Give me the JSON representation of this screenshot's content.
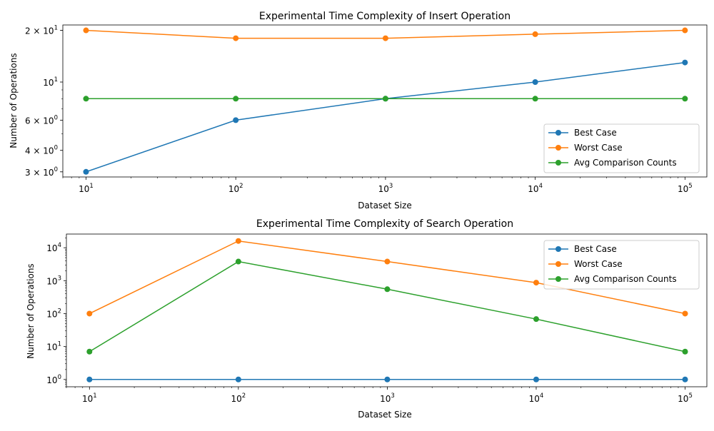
{
  "chart_data": [
    {
      "type": "line",
      "title": "Experimental Time Complexity of Insert Operation",
      "xlabel": "Dataset Size",
      "ylabel": "Number of Operations",
      "x": [
        10,
        100,
        1000,
        10000,
        100000
      ],
      "x_scale": "log",
      "y_scale": "log",
      "xlim": [
        7,
        140000
      ],
      "ylim": [
        2.8,
        21.5
      ],
      "x_tick_labels": [
        {
          "v": 10,
          "base": "10",
          "exp": "1"
        },
        {
          "v": 100,
          "base": "10",
          "exp": "2"
        },
        {
          "v": 1000,
          "base": "10",
          "exp": "3"
        },
        {
          "v": 10000,
          "base": "10",
          "exp": "4"
        },
        {
          "v": 100000,
          "base": "10",
          "exp": "5"
        }
      ],
      "y_tick_labels": [
        {
          "v": 3,
          "prefix": "3 × ",
          "base": "10",
          "exp": "0"
        },
        {
          "v": 4,
          "prefix": "4 × ",
          "base": "10",
          "exp": "0"
        },
        {
          "v": 6,
          "prefix": "6 × ",
          "base": "10",
          "exp": "0"
        },
        {
          "v": 10,
          "prefix": "",
          "base": "10",
          "exp": "1"
        },
        {
          "v": 20,
          "prefix": "2 × ",
          "base": "10",
          "exp": "1"
        }
      ],
      "series": [
        {
          "name": "Best Case",
          "color": "#1f77b4",
          "values": [
            3,
            6,
            8,
            10,
            13
          ]
        },
        {
          "name": "Worst Case",
          "color": "#ff7f0e",
          "values": [
            20,
            18,
            18,
            19,
            20
          ]
        },
        {
          "name": "Avg Comparison Counts",
          "color": "#2ca02c",
          "values": [
            8,
            8,
            8,
            8,
            8
          ]
        }
      ],
      "legend": "lower right",
      "grid": false
    },
    {
      "type": "line",
      "title": "Experimental Time Complexity of Search Operation",
      "xlabel": "Dataset Size",
      "ylabel": "Number of Operations",
      "x": [
        10,
        100,
        1000,
        10000,
        100000
      ],
      "x_scale": "log",
      "y_scale": "log",
      "xlim": [
        7,
        140000
      ],
      "ylim": [
        0.6,
        26000
      ],
      "x_tick_labels": [
        {
          "v": 10,
          "base": "10",
          "exp": "1"
        },
        {
          "v": 100,
          "base": "10",
          "exp": "2"
        },
        {
          "v": 1000,
          "base": "10",
          "exp": "3"
        },
        {
          "v": 10000,
          "base": "10",
          "exp": "4"
        },
        {
          "v": 100000,
          "base": "10",
          "exp": "5"
        }
      ],
      "y_tick_labels": [
        {
          "v": 1,
          "prefix": "",
          "base": "10",
          "exp": "0"
        },
        {
          "v": 10,
          "prefix": "",
          "base": "10",
          "exp": "1"
        },
        {
          "v": 100,
          "prefix": "",
          "base": "10",
          "exp": "2"
        },
        {
          "v": 1000,
          "prefix": "",
          "base": "10",
          "exp": "3"
        },
        {
          "v": 10000,
          "prefix": "",
          "base": "10",
          "exp": "4"
        }
      ],
      "series": [
        {
          "name": "Best Case",
          "color": "#1f77b4",
          "values": [
            1,
            1,
            1,
            1,
            1
          ]
        },
        {
          "name": "Worst Case",
          "color": "#ff7f0e",
          "values": [
            100,
            16000,
            3800,
            870,
            100
          ]
        },
        {
          "name": "Avg Comparison Counts",
          "color": "#2ca02c",
          "values": [
            7,
            3800,
            550,
            68,
            7
          ]
        }
      ],
      "legend": "upper right",
      "grid": false
    }
  ]
}
